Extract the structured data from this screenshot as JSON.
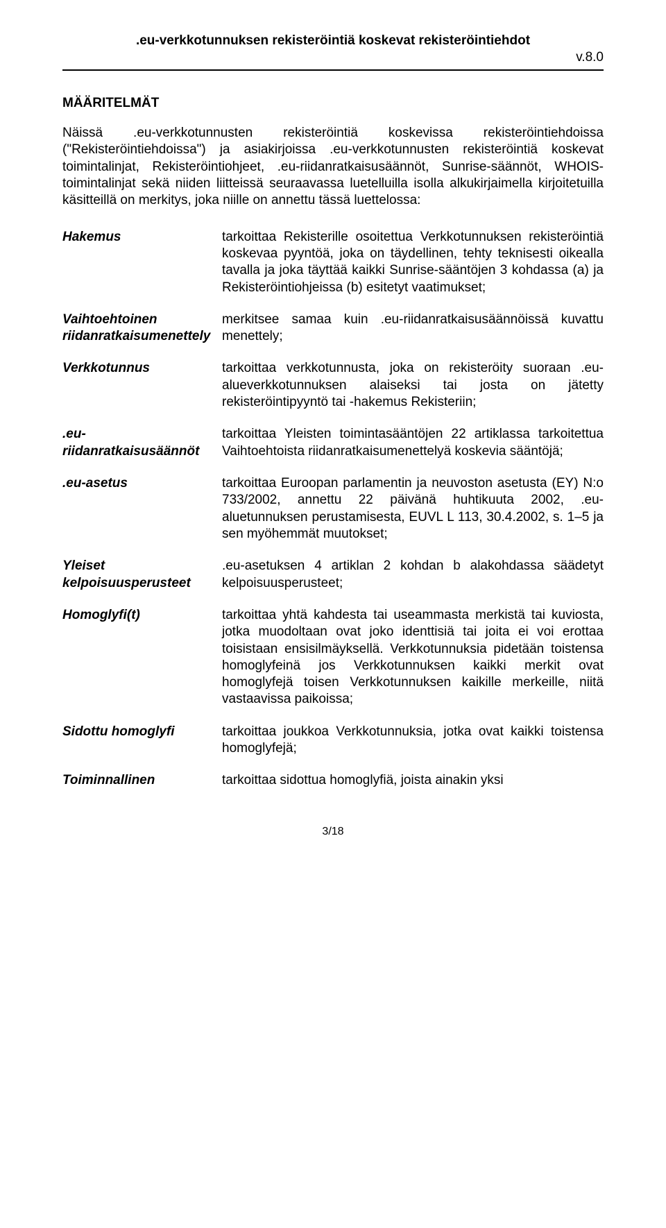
{
  "header": {
    "title": ".eu-verkkotunnuksen rekisteröintiä koskevat rekisteröintiehdot",
    "version": "v.8.0"
  },
  "section_title": "MÄÄRITELMÄT",
  "intro": "Näissä .eu-verkkotunnusten rekisteröintiä koskevissa rekisteröintiehdoissa (\"Rekisteröintiehdoissa\") ja asiakirjoissa .eu-verkkotunnusten rekisteröintiä koskevat toimintalinjat, Rekisteröintiohjeet, .eu-riidanratkaisusäännöt, Sunrise-säännöt, WHOIS-toimintalinjat sekä niiden liitteissä seuraavassa luetelluilla isolla alkukirjaimella kirjoitetuilla käsitteillä on merkitys, joka niille on annettu tässä luettelossa:",
  "definitions": [
    {
      "term": "Hakemus",
      "desc": "tarkoittaa Rekisterille osoitettua Verkkotunnuksen rekisteröintiä koskevaa pyyntöä, joka on täydellinen, tehty teknisesti oikealla tavalla ja joka täyttää kaikki Sunrise-sääntöjen 3 kohdassa (a) ja Rekisteröintiohjeissa (b) esitetyt vaatimukset;"
    },
    {
      "term": "Vaihtoehtoinen riidanratkaisumenettely",
      "desc": "merkitsee samaa kuin .eu-riidanratkaisusäännöissä kuvattu menettely;"
    },
    {
      "term": "Verkkotunnus",
      "desc": "tarkoittaa verkkotunnusta, joka on rekisteröity suoraan .eu-alueverkkotunnuksen alaiseksi tai josta on jätetty rekisteröintipyyntö tai -hakemus Rekisteriin;"
    },
    {
      "term": ".eu-riidanratkaisusäännöt",
      "desc": "tarkoittaa Yleisten toimintasääntöjen 22 artiklassa tarkoitettua Vaihtoehtoista riidanratkaisumenettelyä koskevia sääntöjä;"
    },
    {
      "term": ".eu-asetus",
      "desc": "tarkoittaa Euroopan parlamentin ja neuvoston asetusta (EY) N:o 733/2002, annettu 22 päivänä huhtikuuta 2002, .eu-aluetunnuksen perustamisesta, EUVL L 113, 30.4.2002, s. 1–5 ja sen myöhemmät muutokset;"
    },
    {
      "term": "Yleiset kelpoisuusperusteet",
      "desc": ".eu-asetuksen 4 artiklan 2 kohdan b alakohdassa säädetyt kelpoisuusperusteet;"
    },
    {
      "term": "Homoglyfi(t)",
      "desc": "tarkoittaa yhtä kahdesta tai useammasta merkistä tai kuviosta, jotka muodoltaan ovat joko identtisiä tai joita ei voi erottaa toisistaan ensisilmäyksellä. Verkkotunnuksia pidetään toistensa homoglyfeinä jos Verkkotunnuksen kaikki merkit ovat homoglyfejä toisen Verkkotunnuksen kaikille merkeille, niitä vastaavissa paikoissa;"
    },
    {
      "term": "Sidottu homoglyfi",
      "desc": "tarkoittaa joukkoa Verkkotunnuksia, jotka ovat kaikki toistensa homoglyfejä;"
    },
    {
      "term": "Toiminnallinen",
      "desc": "tarkoittaa sidottua homoglyfiä, joista ainakin yksi"
    }
  ],
  "page_number": "3/18",
  "colors": {
    "text": "#000000",
    "background": "#ffffff",
    "rule": "#000000"
  },
  "typography": {
    "base_font_size_pt": 14,
    "font_family": "Arial",
    "line_height": 1.28
  }
}
